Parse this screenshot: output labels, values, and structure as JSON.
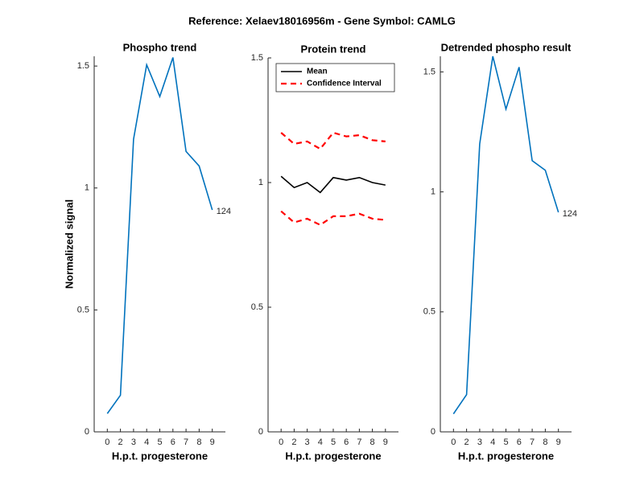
{
  "title": "Reference:  Xelaev18016956m - Gene Symbol:  CAMLG",
  "chart_data": [
    {
      "type": "line",
      "title": "Phospho trend",
      "xlabel": "H.p.t. progesterone",
      "ylabel": "Normalized signal",
      "categories": [
        "0",
        "2",
        "3",
        "4",
        "5",
        "6",
        "7",
        "8",
        "9"
      ],
      "series": [
        {
          "color": "#0072bd",
          "values": [
            0.075,
            0.15,
            1.2,
            1.505,
            1.375,
            1.535,
            1.15,
            1.09,
            0.91
          ]
        }
      ],
      "annotation": "124",
      "ylim": [
        0,
        1.54
      ],
      "yticks": [
        0,
        0.5,
        1,
        1.5
      ]
    },
    {
      "type": "line",
      "title": "Protein trend",
      "xlabel": "H.p.t. progesterone",
      "categories": [
        "0",
        "2",
        "3",
        "4",
        "5",
        "6",
        "7",
        "8",
        "9"
      ],
      "series": [
        {
          "name": "Mean",
          "color": "#000000",
          "values": [
            1.025,
            0.98,
            1.0,
            0.96,
            1.02,
            1.01,
            1.02,
            1.0,
            0.99
          ]
        },
        {
          "name": "Confidence Interval",
          "color": "#ff0000",
          "dashed": true,
          "values": [
            1.2,
            1.155,
            1.165,
            1.135,
            1.2,
            1.185,
            1.19,
            1.17,
            1.165
          ],
          "lower_values": [
            0.885,
            0.84,
            0.855,
            0.83,
            0.865,
            0.865,
            0.875,
            0.855,
            0.85
          ]
        }
      ],
      "legend": "upper left",
      "ylim": [
        0,
        1.5
      ],
      "yticks": [
        0,
        0.5,
        1,
        1.5
      ]
    },
    {
      "type": "line",
      "title": "Detrended phospho result",
      "xlabel": "H.p.t. progesterone",
      "categories": [
        "0",
        "2",
        "3",
        "4",
        "5",
        "6",
        "7",
        "8",
        "9"
      ],
      "series": [
        {
          "color": "#0072bd",
          "values": [
            0.075,
            0.155,
            1.2,
            1.565,
            1.345,
            1.52,
            1.13,
            1.09,
            0.915
          ]
        }
      ],
      "annotation": "124",
      "ylim": [
        0,
        1.565
      ],
      "yticks": [
        0,
        0.5,
        1,
        1.5
      ]
    }
  ]
}
